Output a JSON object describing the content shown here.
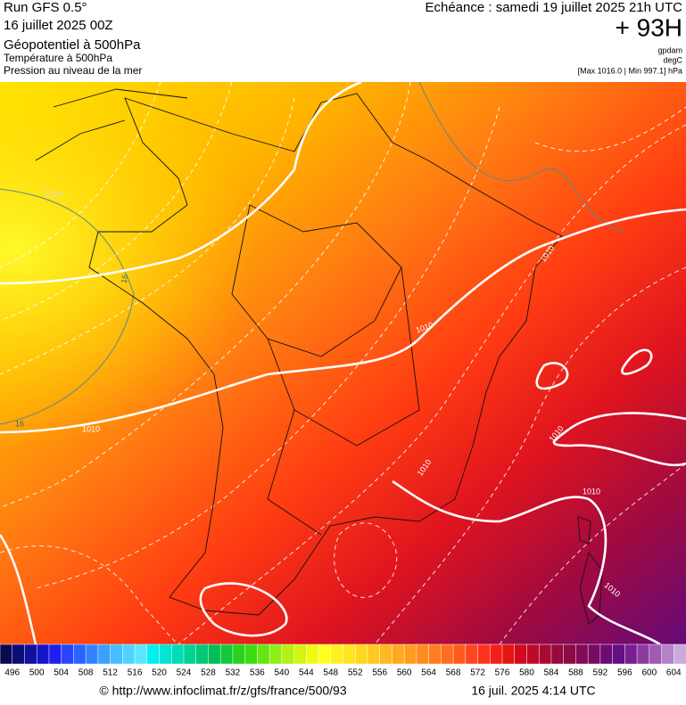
{
  "header": {
    "run": "Run GFS 0.5°",
    "date": "16 juillet 2025 00Z",
    "title": "Géopotentiel à 500hPa",
    "subtitle1": "Température à 500hPa",
    "subtitle2": "Pression au niveau de la mer",
    "echeance": "Echéance : samedi 19 juillet 2025 21h UTC",
    "lead": "+ 93H",
    "unit1": "gpdam",
    "unit2": "degC",
    "range": "[Max 1016.0 | Min 997.1] hPa"
  },
  "map": {
    "contour_labels": [
      "1010",
      "1010",
      "1010",
      "1010",
      "1010",
      "1010",
      "1010",
      "1010",
      "16",
      "16"
    ]
  },
  "colorbar": {
    "ticks": [
      496,
      500,
      504,
      508,
      512,
      516,
      520,
      524,
      528,
      532,
      536,
      540,
      544,
      548,
      552,
      556,
      560,
      564,
      568,
      572,
      576,
      580,
      584,
      588,
      592,
      596,
      600,
      604
    ],
    "colors": [
      "#0a0a50",
      "#0d0d78",
      "#1010a0",
      "#1414c8",
      "#1e1ef0",
      "#2846ff",
      "#2864ff",
      "#3282ff",
      "#3ca0ff",
      "#46beff",
      "#50d2ff",
      "#5ae6ff",
      "#00f0f0",
      "#00e6d2",
      "#00dcb4",
      "#00d296",
      "#00c878",
      "#00be5a",
      "#14c83c",
      "#28d21e",
      "#3cdc14",
      "#64e614",
      "#8cf014",
      "#b4f014",
      "#d2f514",
      "#f0fa14",
      "#ffff1e",
      "#fff01e",
      "#ffe61e",
      "#ffd71e",
      "#ffc81e",
      "#ffb91e",
      "#ffaa1e",
      "#ff9b1e",
      "#ff8c1e",
      "#ff7d1e",
      "#ff6e1e",
      "#ff5a1e",
      "#ff461e",
      "#ff321e",
      "#f51e1e",
      "#e61414",
      "#d20a1e",
      "#be0a28",
      "#aa0a32",
      "#960a3c",
      "#8c0a46",
      "#820a55",
      "#780a64",
      "#6e0a73",
      "#640f82",
      "#781e91",
      "#8c3ca0",
      "#a05ab4",
      "#b482c8",
      "#c8aadc"
    ]
  },
  "footer": {
    "url": "© http://www.infoclimat.fr/z/gfs/france/500/93",
    "generated": "16 juil. 2025  4:14 UTC"
  }
}
